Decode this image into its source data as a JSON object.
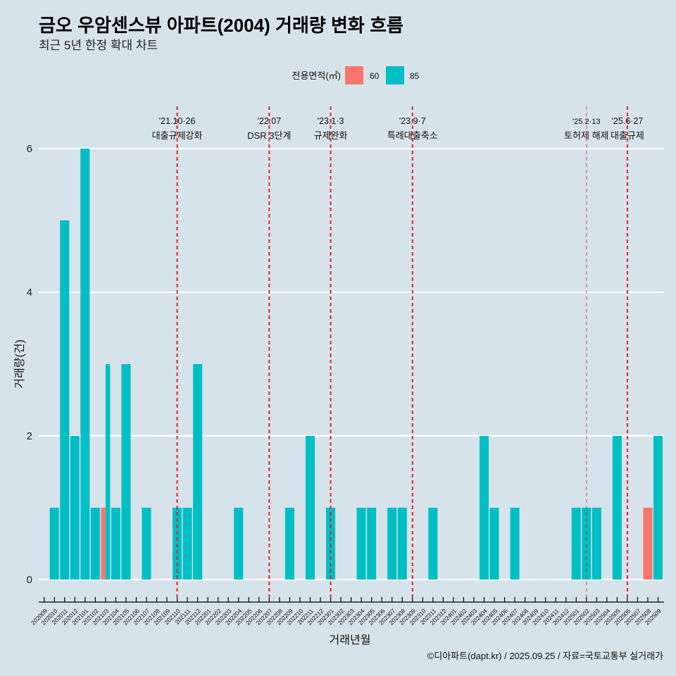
{
  "header": {
    "title": "금오 우암센스뷰 아파트(2004) 거래량 변화 흐름",
    "subtitle": "최근 5년 한정 확대 차트"
  },
  "legend": {
    "title": "전용면적(㎡)",
    "items": [
      {
        "label": "60",
        "color": "#F8766D"
      },
      {
        "label": "85",
        "color": "#00BFC4"
      }
    ]
  },
  "caption": "©디아파트(dapt.kr) / 2025.09.25 / 자료=국토교통부 실거래가",
  "chart_data": {
    "type": "bar",
    "position": "dodge",
    "title": "금오 우암센스뷰 아파트(2004) 거래량 변화 흐름",
    "subtitle": "최근 5년 한정 확대 차트",
    "xlabel": "거래년월",
    "ylabel": "거래량(건)",
    "ylim": [
      0,
      6
    ],
    "yticks": [
      0,
      2,
      4,
      6
    ],
    "grid": true,
    "legend_position": "top",
    "categories": [
      "202009",
      "202010",
      "202011",
      "202012",
      "202101",
      "202102",
      "202103",
      "202104",
      "202105",
      "202106",
      "202107",
      "202108",
      "202109",
      "202110",
      "202111",
      "202112",
      "202201",
      "202202",
      "202203",
      "202204",
      "202205",
      "202206",
      "202207",
      "202208",
      "202209",
      "202210",
      "202211",
      "202212",
      "202301",
      "202302",
      "202303",
      "202304",
      "202305",
      "202306",
      "202307",
      "202308",
      "202309",
      "202310",
      "202311",
      "202312",
      "202401",
      "202402",
      "202403",
      "202404",
      "202405",
      "202406",
      "202407",
      "202408",
      "202409",
      "202410",
      "202411",
      "202412",
      "202501",
      "202502",
      "202503",
      "202504",
      "202505",
      "202506",
      "202507",
      "202508",
      "202509"
    ],
    "series": [
      {
        "name": "60",
        "color": "#F8766D",
        "values": [
          0,
          0,
          0,
          0,
          0,
          0,
          1,
          0,
          0,
          0,
          0,
          0,
          0,
          0,
          0,
          0,
          0,
          0,
          0,
          0,
          0,
          0,
          0,
          0,
          0,
          0,
          0,
          0,
          0,
          0,
          0,
          0,
          0,
          0,
          0,
          0,
          0,
          0,
          0,
          0,
          0,
          0,
          0,
          0,
          0,
          0,
          0,
          0,
          0,
          0,
          0,
          0,
          0,
          0,
          0,
          0,
          0,
          0,
          0,
          1,
          0
        ]
      },
      {
        "name": "85",
        "color": "#00BFC4",
        "values": [
          0,
          1,
          5,
          2,
          6,
          1,
          3,
          1,
          3,
          0,
          1,
          0,
          0,
          1,
          1,
          3,
          0,
          0,
          0,
          1,
          0,
          0,
          0,
          0,
          1,
          0,
          2,
          0,
          1,
          0,
          0,
          1,
          1,
          0,
          1,
          1,
          0,
          0,
          1,
          0,
          0,
          0,
          0,
          2,
          1,
          0,
          1,
          0,
          0,
          0,
          0,
          0,
          1,
          1,
          1,
          0,
          2,
          0,
          0,
          0,
          2
        ]
      }
    ],
    "annotations": [
      {
        "category": "202110",
        "date": "'21.10·26",
        "label": "대출규제강화",
        "color": "#E31A1C",
        "alpha": 1
      },
      {
        "category": "202207",
        "date": "'22.07",
        "label": "DSR 3단계",
        "color": "#E31A1C",
        "alpha": 1
      },
      {
        "category": "202301",
        "date": "'23.1·3",
        "label": "규제완화",
        "color": "#E31A1C",
        "alpha": 1
      },
      {
        "category": "202309",
        "date": "'23.9·7",
        "label": "특례대출축소",
        "color": "#E31A1C",
        "alpha": 1
      },
      {
        "category": "202502",
        "date": "'25.2·13",
        "label": "토허제 해제",
        "color": "#E31A1C",
        "alpha": 0.6
      },
      {
        "category": "202506",
        "date": "'25.6·27",
        "label": "대출규제",
        "color": "#E31A1C",
        "alpha": 1
      }
    ]
  }
}
